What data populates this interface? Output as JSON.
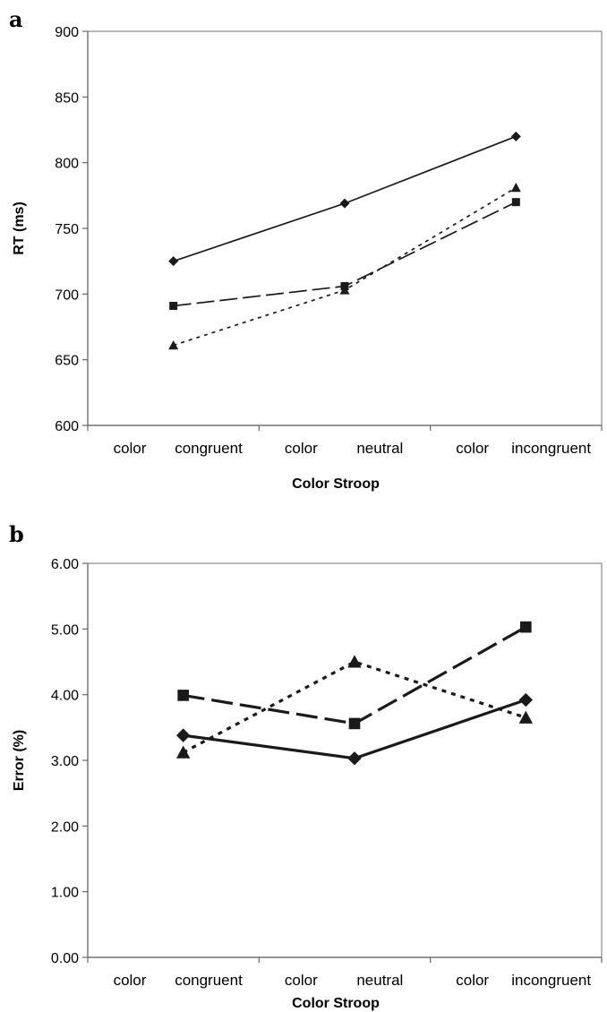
{
  "chart_data": [
    {
      "panel": "a",
      "type": "line",
      "categories": [
        "color congruent",
        "color neutral",
        "color incongruent"
      ],
      "category_label_parts": [
        [
          "color",
          "congruent"
        ],
        [
          "color",
          "neutral"
        ],
        [
          "color",
          "incongruent"
        ]
      ],
      "xlabel": "Color Stroop",
      "ylabel": "RT (ms)",
      "ylim": [
        600,
        900
      ],
      "yticks": [
        600,
        650,
        700,
        750,
        800,
        850,
        900
      ],
      "ytick_labels": [
        "600",
        "650",
        "700",
        "750",
        "800",
        "850",
        "900"
      ],
      "grid": false,
      "legend": "none",
      "series": [
        {
          "marker": "diamond-icon",
          "line_style": "solid",
          "values": [
            725,
            769,
            820
          ]
        },
        {
          "marker": "square-icon",
          "line_style": "long-dash",
          "values": [
            691,
            706,
            770
          ]
        },
        {
          "marker": "triangle-icon",
          "line_style": "dotted",
          "values": [
            661,
            703,
            781
          ]
        }
      ]
    },
    {
      "panel": "b",
      "type": "line",
      "categories": [
        "color congruent",
        "color neutral",
        "color incongruent"
      ],
      "category_label_parts": [
        [
          "color",
          "congruent"
        ],
        [
          "color",
          "neutral"
        ],
        [
          "color",
          "incongruent"
        ]
      ],
      "xlabel": "Color Stroop",
      "ylabel": "Error (%)",
      "ylim": [
        0,
        6
      ],
      "yticks": [
        0,
        1,
        2,
        3,
        4,
        5,
        6
      ],
      "ytick_labels": [
        "0.00",
        "1.00",
        "2.00",
        "3.00",
        "4.00",
        "5.00",
        "6.00"
      ],
      "grid": false,
      "legend": "none",
      "series": [
        {
          "marker": "diamond-icon",
          "line_style": "solid",
          "values": [
            3.38,
            3.03,
            3.92
          ]
        },
        {
          "marker": "square-icon",
          "line_style": "long-dash",
          "values": [
            3.99,
            3.56,
            5.03
          ]
        },
        {
          "marker": "triangle-icon",
          "line_style": "dotted",
          "values": [
            3.12,
            4.5,
            3.65
          ]
        }
      ]
    }
  ]
}
